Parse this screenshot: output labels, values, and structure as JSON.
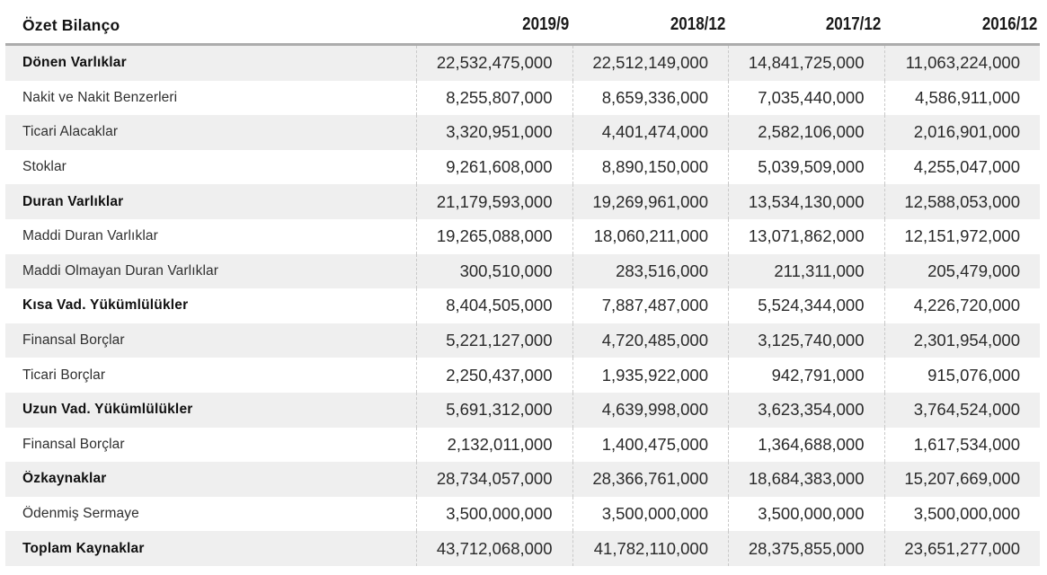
{
  "colors": {
    "zebra_row": "#efefef",
    "header_rule": "#acacac",
    "column_divider": "#c9c9c9",
    "text_primary": "#1a1a1a",
    "text_secondary": "#2f2f2f"
  },
  "chart_data": {
    "type": "table",
    "title": "Özet Bilanço",
    "columns": [
      "2019/9",
      "2018/12",
      "2017/12",
      "2016/12"
    ],
    "rows": [
      {
        "label": "Dönen Varlıklar",
        "bold": true,
        "values": [
          "22,532,475,000",
          "22,512,149,000",
          "14,841,725,000",
          "11,063,224,000"
        ]
      },
      {
        "label": "Nakit ve Nakit Benzerleri",
        "bold": false,
        "values": [
          "8,255,807,000",
          "8,659,336,000",
          "7,035,440,000",
          "4,586,911,000"
        ]
      },
      {
        "label": "Ticari Alacaklar",
        "bold": false,
        "values": [
          "3,320,951,000",
          "4,401,474,000",
          "2,582,106,000",
          "2,016,901,000"
        ]
      },
      {
        "label": "Stoklar",
        "bold": false,
        "values": [
          "9,261,608,000",
          "8,890,150,000",
          "5,039,509,000",
          "4,255,047,000"
        ]
      },
      {
        "label": "Duran Varlıklar",
        "bold": true,
        "values": [
          "21,179,593,000",
          "19,269,961,000",
          "13,534,130,000",
          "12,588,053,000"
        ]
      },
      {
        "label": "Maddi Duran Varlıklar",
        "bold": false,
        "values": [
          "19,265,088,000",
          "18,060,211,000",
          "13,071,862,000",
          "12,151,972,000"
        ]
      },
      {
        "label": "Maddi Olmayan Duran Varlıklar",
        "bold": false,
        "values": [
          "300,510,000",
          "283,516,000",
          "211,311,000",
          "205,479,000"
        ]
      },
      {
        "label": "Kısa Vad. Yükümlülükler",
        "bold": true,
        "values": [
          "8,404,505,000",
          "7,887,487,000",
          "5,524,344,000",
          "4,226,720,000"
        ]
      },
      {
        "label": "Finansal Borçlar",
        "bold": false,
        "values": [
          "5,221,127,000",
          "4,720,485,000",
          "3,125,740,000",
          "2,301,954,000"
        ]
      },
      {
        "label": "Ticari Borçlar",
        "bold": false,
        "values": [
          "2,250,437,000",
          "1,935,922,000",
          "942,791,000",
          "915,076,000"
        ]
      },
      {
        "label": "Uzun Vad. Yükümlülükler",
        "bold": true,
        "values": [
          "5,691,312,000",
          "4,639,998,000",
          "3,623,354,000",
          "3,764,524,000"
        ]
      },
      {
        "label": "Finansal Borçlar",
        "bold": false,
        "values": [
          "2,132,011,000",
          "1,400,475,000",
          "1,364,688,000",
          "1,617,534,000"
        ]
      },
      {
        "label": "Özkaynaklar",
        "bold": true,
        "values": [
          "28,734,057,000",
          "28,366,761,000",
          "18,684,383,000",
          "15,207,669,000"
        ]
      },
      {
        "label": "Ödenmiş Sermaye",
        "bold": false,
        "values": [
          "3,500,000,000",
          "3,500,000,000",
          "3,500,000,000",
          "3,500,000,000"
        ]
      },
      {
        "label": "Toplam Kaynaklar",
        "bold": true,
        "values": [
          "43,712,068,000",
          "41,782,110,000",
          "28,375,855,000",
          "23,651,277,000"
        ]
      }
    ]
  }
}
